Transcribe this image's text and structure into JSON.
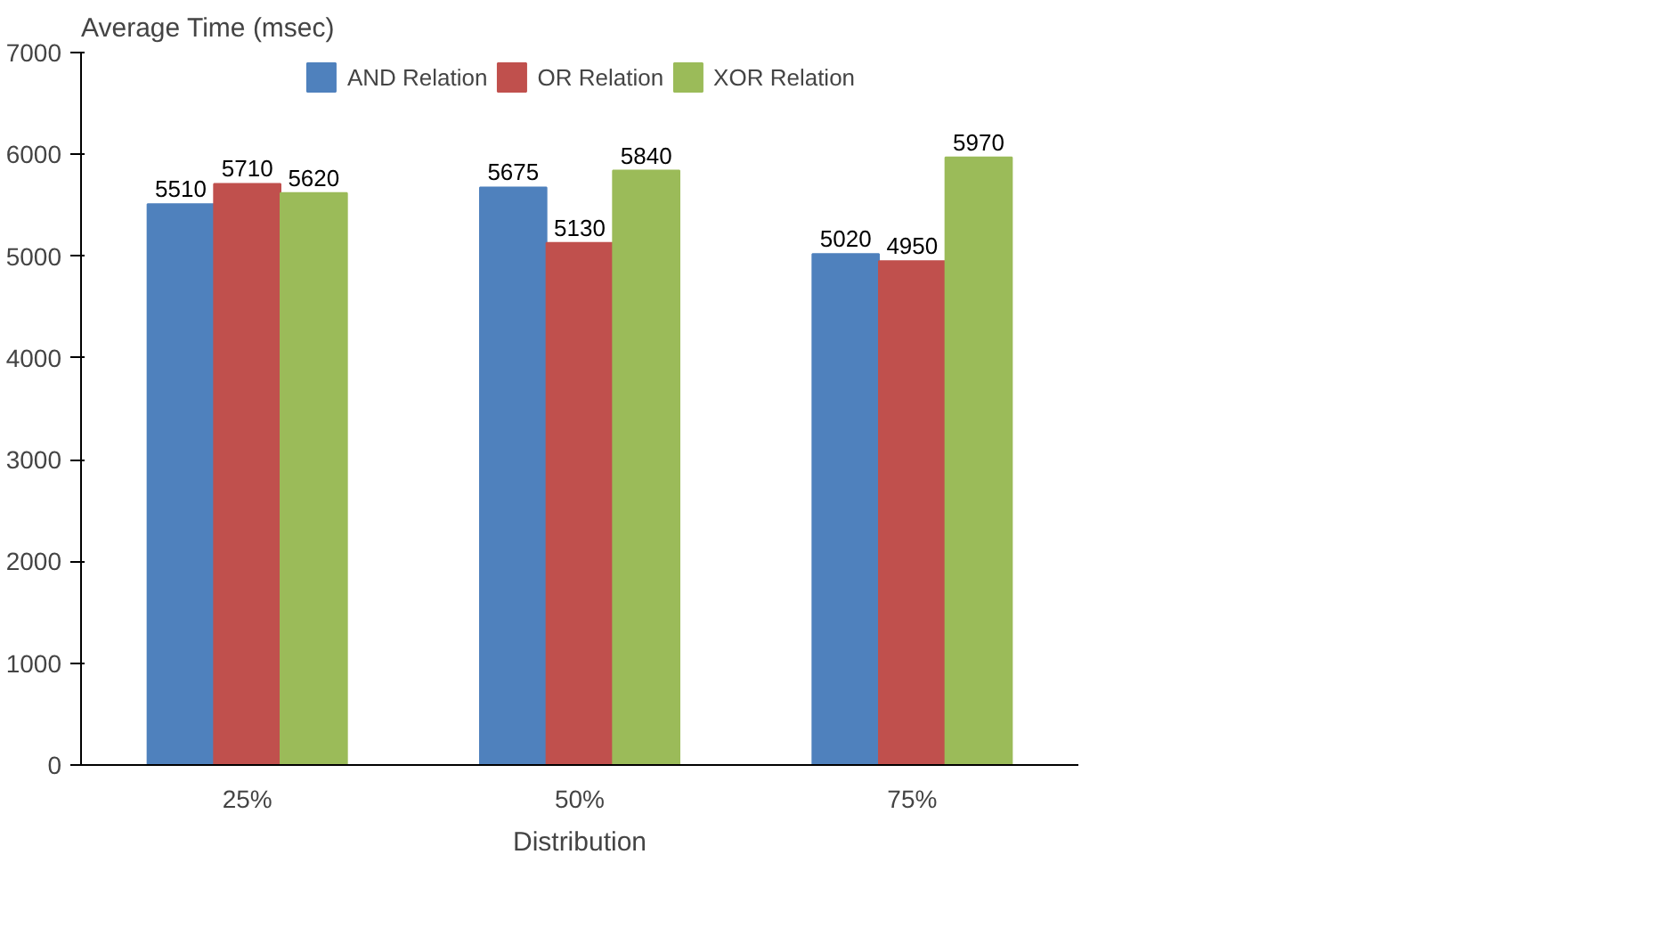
{
  "chart_data": {
    "type": "bar",
    "ylabel": "Average Time (msec)",
    "xlabel": "Distribution",
    "categories": [
      "25%",
      "50%",
      "75%"
    ],
    "series": [
      {
        "name": "AND Relation",
        "color": "#4f81bd",
        "values": [
          5510,
          5675,
          5020
        ]
      },
      {
        "name": "OR Relation",
        "color": "#c0504d",
        "values": [
          5710,
          5130,
          4950
        ]
      },
      {
        "name": "XOR Relation",
        "color": "#9bbb59",
        "values": [
          5620,
          5840,
          5970
        ]
      }
    ],
    "ylim": [
      0,
      7000
    ],
    "yticks": [
      0,
      1000,
      2000,
      3000,
      4000,
      5000,
      6000,
      7000
    ],
    "data_labels": true,
    "grid": false,
    "legend": "top"
  }
}
